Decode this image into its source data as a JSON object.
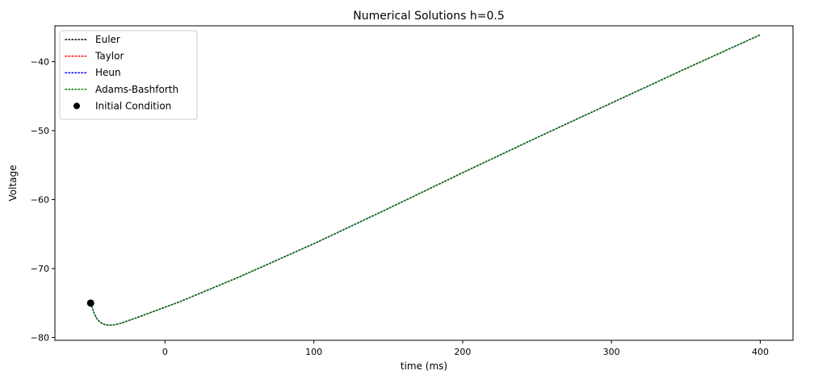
{
  "chart_data": {
    "type": "line",
    "title": "Numerical Solutions h=0.5",
    "xlabel": "time (ms)",
    "ylabel": "Voltage",
    "xlim": [
      -74,
      422
    ],
    "ylim": [
      -80.4,
      -34.8
    ],
    "xticks": [
      0,
      100,
      200,
      300,
      400
    ],
    "yticks": [
      -80,
      -70,
      -60,
      -50,
      -40
    ],
    "xtick_labels": [
      "0",
      "100",
      "200",
      "300",
      "400"
    ],
    "ytick_labels": [
      "−80",
      "−70",
      "−60",
      "−50",
      "−40"
    ],
    "grid": false,
    "legend_position": "upper left",
    "x": [
      -50,
      -48,
      -46,
      -44,
      -42,
      -40,
      -38,
      -36,
      -34,
      -32,
      -30,
      -28,
      -26,
      -24,
      -22,
      -20,
      -15,
      -10,
      -5,
      0,
      10,
      20,
      30,
      40,
      50,
      75,
      100,
      150,
      200,
      250,
      300,
      350,
      400
    ],
    "series": [
      {
        "name": "Euler",
        "color": "#000000",
        "y": [
          -75.0,
          -76.3,
          -77.2,
          -77.7,
          -78.0,
          -78.15,
          -78.2,
          -78.2,
          -78.15,
          -78.05,
          -77.95,
          -77.8,
          -77.65,
          -77.5,
          -77.35,
          -77.2,
          -76.8,
          -76.4,
          -76.0,
          -75.6,
          -74.8,
          -73.9,
          -73.0,
          -72.1,
          -71.2,
          -68.8,
          -66.4,
          -61.3,
          -56.1,
          -51.0,
          -46.0,
          -41.0,
          -36.1
        ]
      },
      {
        "name": "Taylor",
        "color": "#ff0000",
        "y": [
          -75.0,
          -76.3,
          -77.2,
          -77.7,
          -78.0,
          -78.15,
          -78.2,
          -78.2,
          -78.15,
          -78.05,
          -77.95,
          -77.8,
          -77.65,
          -77.5,
          -77.35,
          -77.2,
          -76.8,
          -76.4,
          -76.0,
          -75.6,
          -74.8,
          -73.9,
          -73.0,
          -72.1,
          -71.2,
          -68.8,
          -66.4,
          -61.3,
          -56.1,
          -51.0,
          -46.0,
          -41.0,
          -36.1
        ]
      },
      {
        "name": "Heun",
        "color": "#0000ff",
        "y": [
          -75.0,
          -76.3,
          -77.2,
          -77.7,
          -78.0,
          -78.15,
          -78.2,
          -78.2,
          -78.15,
          -78.05,
          -77.95,
          -77.8,
          -77.65,
          -77.5,
          -77.35,
          -77.2,
          -76.8,
          -76.4,
          -76.0,
          -75.6,
          -74.8,
          -73.9,
          -73.0,
          -72.1,
          -71.2,
          -68.8,
          -66.4,
          -61.3,
          -56.1,
          -51.0,
          -46.0,
          -41.0,
          -36.1
        ]
      },
      {
        "name": "Adams-Bashforth",
        "color": "#008000",
        "y": [
          -75.0,
          -76.3,
          -77.2,
          -77.7,
          -78.0,
          -78.15,
          -78.2,
          -78.2,
          -78.15,
          -78.05,
          -77.95,
          -77.8,
          -77.65,
          -77.5,
          -77.35,
          -77.2,
          -76.8,
          -76.4,
          -76.0,
          -75.6,
          -74.8,
          -73.9,
          -73.0,
          -72.1,
          -71.2,
          -68.8,
          -66.4,
          -61.3,
          -56.1,
          -51.0,
          -46.0,
          -41.0,
          -36.1
        ]
      }
    ],
    "initial_condition": {
      "name": "Initial Condition",
      "x": -50,
      "y": -75.0,
      "color": "#000000"
    }
  }
}
